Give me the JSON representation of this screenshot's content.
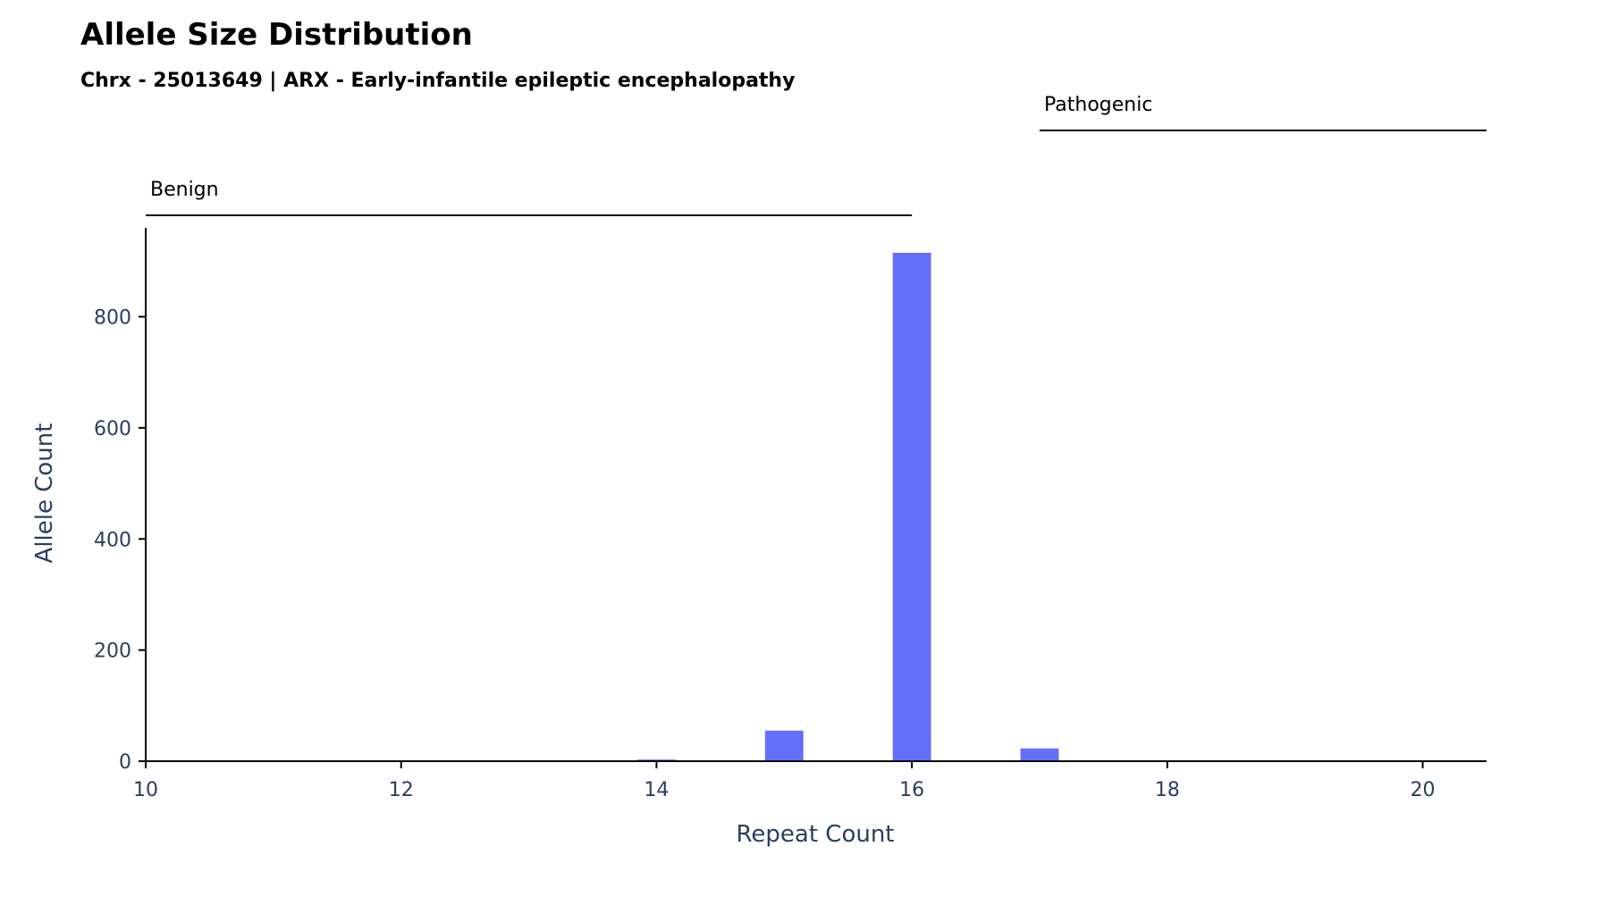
{
  "chart_data": {
    "type": "bar",
    "title": "Allele Size Distribution",
    "subtitle": "Chrx - 25013649 | ARX - Early-infantile epileptic encephalopathy",
    "xlabel": "Repeat Count",
    "ylabel": "Allele Count",
    "xlim": [
      10,
      20.5
    ],
    "ylim": [
      0,
      960
    ],
    "xticks": [
      10,
      12,
      14,
      16,
      18,
      20
    ],
    "yticks": [
      0,
      200,
      400,
      600,
      800
    ],
    "bar_width": 0.3,
    "series": [
      {
        "x": [
          14,
          15,
          16,
          17,
          18
        ],
        "values": [
          3,
          55,
          915,
          23,
          1
        ]
      }
    ],
    "bar_color": "#636efa",
    "grid": false,
    "ranges": [
      {
        "label": "Benign",
        "x_start": 10,
        "x_end": 16
      },
      {
        "label": "Pathogenic",
        "x_start": 17,
        "x_end": 20.5
      }
    ]
  },
  "colors": {
    "axis_text": "#2a3f5f",
    "axis_line": "#000000",
    "range_line": "#000000"
  }
}
